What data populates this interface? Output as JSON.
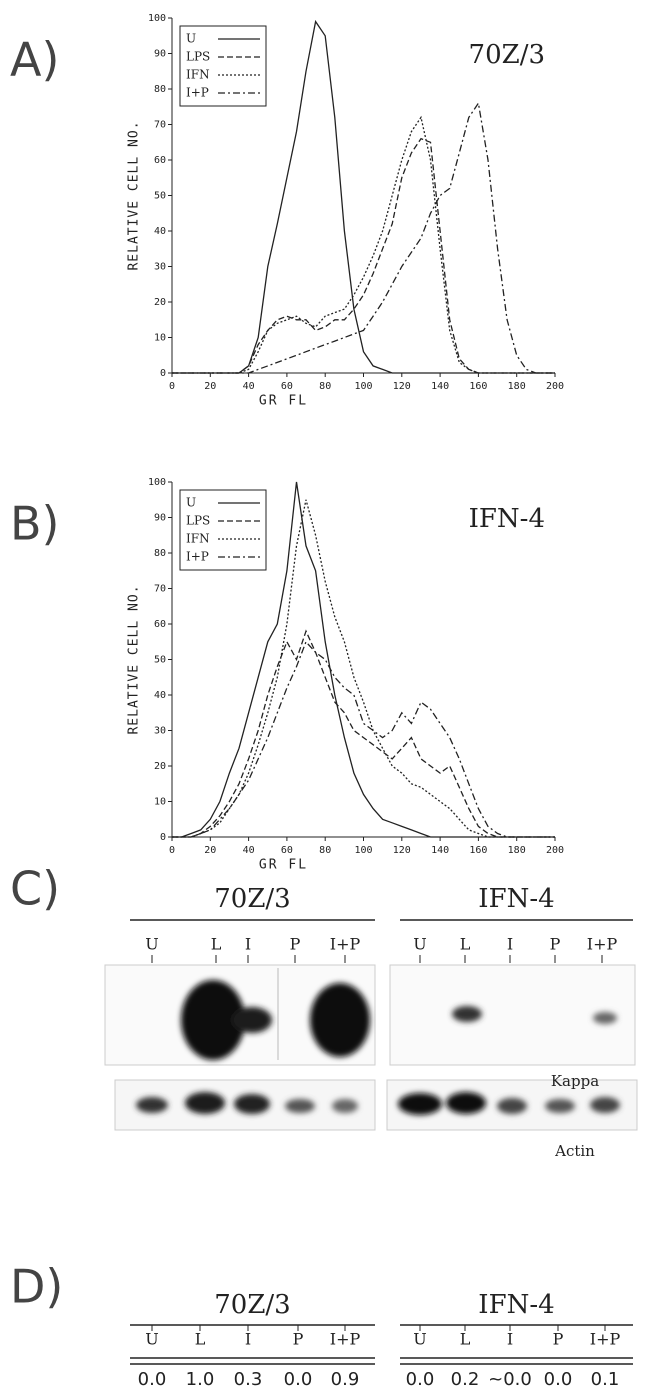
{
  "chart_data": [
    {
      "type": "line",
      "panel_label": "A)",
      "title": "70Z/3",
      "x_label": "GR FL",
      "y_label": "RELATIVE CELL NO.",
      "x": [
        0,
        5,
        10,
        15,
        20,
        25,
        30,
        35,
        40,
        45,
        50,
        55,
        60,
        65,
        70,
        75,
        80,
        85,
        90,
        95,
        100,
        105,
        110,
        115,
        120,
        125,
        130,
        135,
        140,
        145,
        150,
        155,
        160,
        165,
        170,
        175,
        180,
        185,
        190,
        195,
        200
      ],
      "xlim": [
        0,
        200
      ],
      "xticks": [
        0,
        20,
        40,
        60,
        80,
        100,
        120,
        140,
        160,
        180,
        200
      ],
      "ylim": [
        0,
        100
      ],
      "yticks": [
        0,
        10,
        20,
        30,
        40,
        50,
        60,
        70,
        80,
        90,
        100
      ],
      "legend": "top-left",
      "series": [
        {
          "name": "U",
          "color": "#222222",
          "dash": "solid",
          "values": [
            0,
            0,
            0,
            0,
            0,
            0,
            0,
            0,
            2,
            10,
            30,
            42,
            55,
            68,
            85,
            99,
            95,
            72,
            40,
            18,
            6,
            2,
            1,
            0,
            0,
            0,
            0,
            0,
            0,
            0,
            0,
            0,
            0,
            0,
            0,
            0,
            0,
            0,
            0,
            0,
            0
          ]
        },
        {
          "name": "LPS",
          "color": "#222222",
          "dash": "dashed",
          "values": [
            0,
            0,
            0,
            0,
            0,
            0,
            0,
            0,
            2,
            8,
            12,
            15,
            16,
            15,
            15,
            12,
            13,
            15,
            15,
            18,
            22,
            28,
            35,
            42,
            55,
            62,
            66,
            65,
            40,
            15,
            4,
            1,
            0,
            0,
            0,
            0,
            0,
            0,
            0,
            0,
            0
          ]
        },
        {
          "name": "IFN",
          "color": "#222222",
          "dash": "dotted",
          "values": [
            0,
            0,
            0,
            0,
            0,
            0,
            0,
            0,
            1,
            6,
            12,
            14,
            15,
            16,
            14,
            13,
            16,
            17,
            18,
            22,
            27,
            33,
            40,
            50,
            60,
            68,
            72,
            60,
            35,
            12,
            3,
            1,
            0,
            0,
            0,
            0,
            0,
            0,
            0,
            0,
            0
          ]
        },
        {
          "name": "I+P",
          "color": "#222222",
          "dash": "dashdot",
          "values": [
            0,
            0,
            0,
            0,
            0,
            0,
            0,
            0,
            0,
            1,
            2,
            3,
            4,
            5,
            6,
            7,
            8,
            9,
            10,
            11,
            12,
            16,
            20,
            25,
            30,
            34,
            38,
            45,
            50,
            52,
            62,
            72,
            76,
            60,
            35,
            15,
            5,
            1,
            0,
            0,
            0
          ]
        }
      ]
    },
    {
      "type": "line",
      "panel_label": "B)",
      "title": "IFN-4",
      "x_label": "GR FL",
      "y_label": "RELATIVE CELL NO.",
      "x": [
        0,
        5,
        10,
        15,
        20,
        25,
        30,
        35,
        40,
        45,
        50,
        55,
        60,
        65,
        70,
        75,
        80,
        85,
        90,
        95,
        100,
        105,
        110,
        115,
        120,
        125,
        130,
        135,
        140,
        145,
        150,
        155,
        160,
        165,
        170,
        175,
        180,
        185,
        190,
        195,
        200
      ],
      "xlim": [
        0,
        200
      ],
      "xticks": [
        0,
        20,
        40,
        60,
        80,
        100,
        120,
        140,
        160,
        180,
        200
      ],
      "ylim": [
        0,
        100
      ],
      "yticks": [
        0,
        10,
        20,
        30,
        40,
        50,
        60,
        70,
        80,
        90,
        100
      ],
      "legend": "top-left",
      "series": [
        {
          "name": "U",
          "color": "#222222",
          "dash": "solid",
          "values": [
            0,
            0,
            1,
            2,
            5,
            10,
            18,
            25,
            35,
            45,
            55,
            60,
            75,
            100,
            82,
            75,
            55,
            40,
            28,
            18,
            12,
            8,
            5,
            4,
            3,
            2,
            1,
            0,
            0,
            0,
            0,
            0,
            0,
            0,
            0,
            0,
            0,
            0,
            0,
            0,
            0
          ]
        },
        {
          "name": "LPS",
          "color": "#222222",
          "dash": "dashed",
          "values": [
            0,
            0,
            0,
            1,
            3,
            6,
            10,
            15,
            22,
            30,
            40,
            48,
            55,
            50,
            58,
            52,
            45,
            38,
            35,
            30,
            28,
            26,
            24,
            22,
            25,
            28,
            22,
            20,
            18,
            20,
            14,
            8,
            3,
            1,
            0,
            0,
            0,
            0,
            0,
            0,
            0
          ]
        },
        {
          "name": "IFN",
          "color": "#222222",
          "dash": "dotted",
          "values": [
            0,
            0,
            0,
            1,
            2,
            4,
            8,
            12,
            18,
            26,
            35,
            45,
            60,
            82,
            95,
            85,
            72,
            62,
            55,
            45,
            38,
            30,
            25,
            20,
            18,
            15,
            14,
            12,
            10,
            8,
            5,
            2,
            1,
            0,
            0,
            0,
            0,
            0,
            0,
            0,
            0
          ]
        },
        {
          "name": "I+P",
          "color": "#222222",
          "dash": "dashdot",
          "values": [
            0,
            0,
            0,
            1,
            2,
            5,
            8,
            12,
            16,
            22,
            28,
            35,
            42,
            48,
            55,
            52,
            50,
            45,
            42,
            40,
            32,
            30,
            28,
            30,
            35,
            32,
            38,
            36,
            32,
            28,
            22,
            15,
            8,
            3,
            1,
            0,
            0,
            0,
            0,
            0,
            0
          ]
        }
      ]
    }
  ],
  "blot": {
    "panel_label": "C)",
    "groups": [
      {
        "title": "70Z/3",
        "lanes": [
          "U",
          "L",
          "I",
          "P",
          "I+P"
        ]
      },
      {
        "title": "IFN-4",
        "lanes": [
          "U",
          "L",
          "I",
          "P",
          "I+P"
        ]
      }
    ],
    "probes": [
      "Kappa",
      "Actin"
    ]
  },
  "quantitation": {
    "panel_label": "D)",
    "groups": [
      {
        "title": "70Z/3",
        "lanes": [
          "U",
          "L",
          "I",
          "P",
          "I+P"
        ],
        "values": [
          "0.0",
          "1.0",
          "0.3",
          "0.0",
          "0.9"
        ]
      },
      {
        "title": "IFN-4",
        "lanes": [
          "U",
          "L",
          "I",
          "P",
          "I+P"
        ],
        "values": [
          "0.0",
          "0.2",
          "~0.0",
          "0.0",
          "0.1"
        ]
      }
    ]
  }
}
